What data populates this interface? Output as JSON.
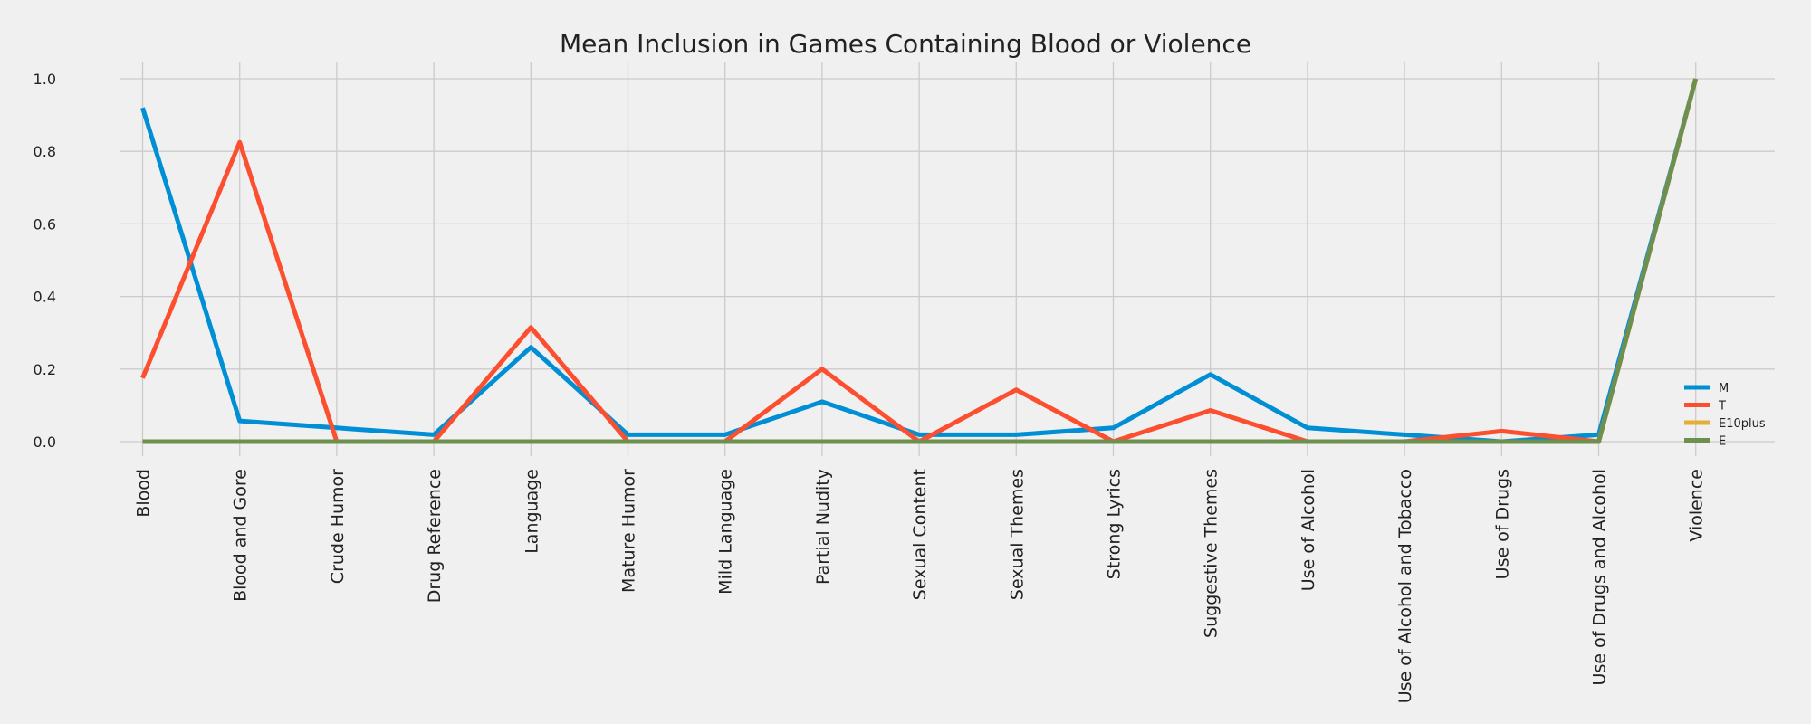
{
  "chart_data": {
    "type": "line",
    "title": "Mean Inclusion in Games Containing Blood or Violence",
    "xlabel": "",
    "ylabel": "",
    "categories": [
      "Blood",
      "Blood and Gore",
      "Crude Humor",
      "Drug Reference",
      "Language",
      "Mature Humor",
      "Mild Language",
      "Partial Nudity",
      "Sexual Content",
      "Sexual Themes",
      "Strong Lyrics",
      "Suggestive Themes",
      "Use of Alcohol",
      "Use of Alcohol and Tobacco",
      "Use of Drugs",
      "Use of Drugs and Alcohol",
      "Violence"
    ],
    "ylim": [
      -0.05,
      1.05
    ],
    "yticks": [
      "0.0",
      "0.2",
      "0.4",
      "0.6",
      "0.8",
      "1.0"
    ],
    "grid": true,
    "legend_position": "bottom-right",
    "series": [
      {
        "name": "M",
        "color": "#008fd5",
        "values": [
          0.92,
          0.057,
          0.038,
          0.019,
          0.26,
          0.019,
          0.019,
          0.11,
          0.019,
          0.019,
          0.038,
          0.185,
          0.038,
          0.019,
          0.0,
          0.019,
          1.0
        ]
      },
      {
        "name": "T",
        "color": "#fc4f30",
        "values": [
          0.175,
          0.825,
          0.0,
          0.0,
          0.315,
          0.0,
          0.0,
          0.2,
          0.0,
          0.143,
          0.0,
          0.086,
          0.0,
          0.0,
          0.029,
          0.0,
          1.0
        ]
      },
      {
        "name": "E10plus",
        "color": "#e5ae38",
        "values": [
          0.0,
          0.0,
          0.0,
          0.0,
          0.0,
          0.0,
          0.0,
          0.0,
          0.0,
          0.0,
          0.0,
          0.0,
          0.0,
          0.0,
          0.0,
          0.0,
          1.0
        ]
      },
      {
        "name": "E",
        "color": "#6d904f",
        "values": [
          0.0,
          0.0,
          0.0,
          0.0,
          0.0,
          0.0,
          0.0,
          0.0,
          0.0,
          0.0,
          0.0,
          0.0,
          0.0,
          0.0,
          0.0,
          0.0,
          1.0
        ]
      }
    ]
  }
}
